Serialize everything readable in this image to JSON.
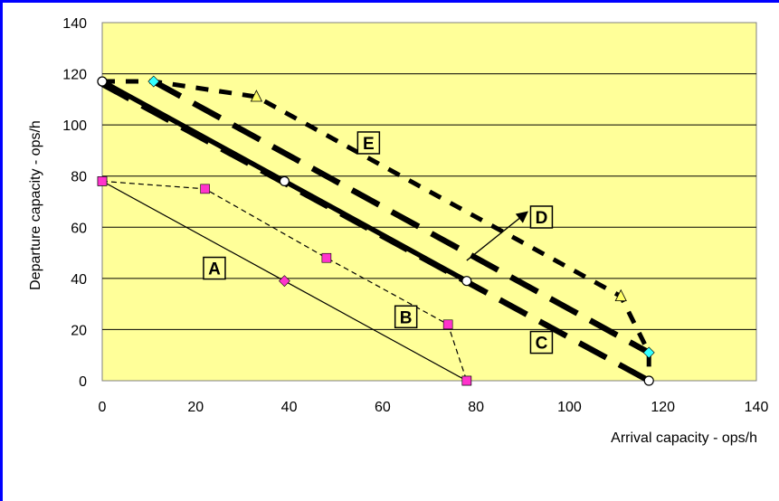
{
  "chart_data": {
    "type": "line",
    "xlabel": "Arrival capacity - ops/h",
    "ylabel": "Departure capacity - ops/h",
    "xlim": [
      0,
      140
    ],
    "ylim": [
      0,
      140
    ],
    "x_ticks": [
      "0",
      "20",
      "40",
      "60",
      "80",
      "100",
      "120",
      "140"
    ],
    "y_ticks": [
      "0",
      "20",
      "40",
      "60",
      "80",
      "100",
      "120",
      "140"
    ],
    "grid": "horizontal",
    "colors": {
      "plot_bg": "#ffff99",
      "border": "#0000ff",
      "magenta": "#ff33cc",
      "cyan": "#33ffff",
      "yellow": "#ffff66",
      "white": "#ffffff"
    },
    "series": [
      {
        "id": "A",
        "style": "thin-solid",
        "points": [
          [
            0,
            78
          ],
          [
            39,
            39
          ],
          [
            78,
            0
          ]
        ],
        "markers": [
          "square-magenta",
          "diamond-magenta",
          "square-magenta"
        ]
      },
      {
        "id": "B",
        "style": "thin-dashed",
        "points": [
          [
            0,
            78
          ],
          [
            22,
            75
          ],
          [
            48,
            48
          ],
          [
            74,
            22
          ],
          [
            78,
            0
          ]
        ],
        "markers": [
          "square-magenta",
          "square-magenta",
          "square-magenta",
          "square-magenta",
          "square-magenta"
        ]
      },
      {
        "id": "solid-thick",
        "style": "thick-solid",
        "points": [
          [
            0,
            117
          ],
          [
            39,
            78
          ],
          [
            78,
            39
          ]
        ],
        "markers": [
          "circle-white",
          "circle-white",
          "circle-white"
        ]
      },
      {
        "id": "C",
        "style": "thick-dashed",
        "points": [
          [
            0,
            116
          ],
          [
            117,
            0
          ]
        ],
        "markers": []
      },
      {
        "id": "mid",
        "style": "thick-dashed",
        "points": [
          [
            11,
            117
          ],
          [
            117,
            11
          ]
        ],
        "markers": []
      },
      {
        "id": "E",
        "style": "dotted-thick",
        "points": [
          [
            0,
            117
          ],
          [
            11,
            117
          ],
          [
            33,
            111
          ],
          [
            111,
            33
          ],
          [
            117,
            11
          ],
          [
            117,
            0
          ]
        ],
        "markers": [
          "circle-white",
          "diamond-cyan",
          "triangle-yellow",
          "triangle-yellow",
          "diamond-cyan",
          "circle-white"
        ]
      }
    ],
    "annotations": [
      {
        "text": "A",
        "x": 24,
        "y": 44
      },
      {
        "text": "B",
        "x": 65,
        "y": 25
      },
      {
        "text": "C",
        "x": 94,
        "y": 15
      },
      {
        "text": "D",
        "x": 94,
        "y": 64
      },
      {
        "text": "E",
        "x": 57,
        "y": 93
      }
    ],
    "arrow": {
      "from": [
        78,
        47
      ],
      "to": [
        91,
        66
      ]
    }
  }
}
